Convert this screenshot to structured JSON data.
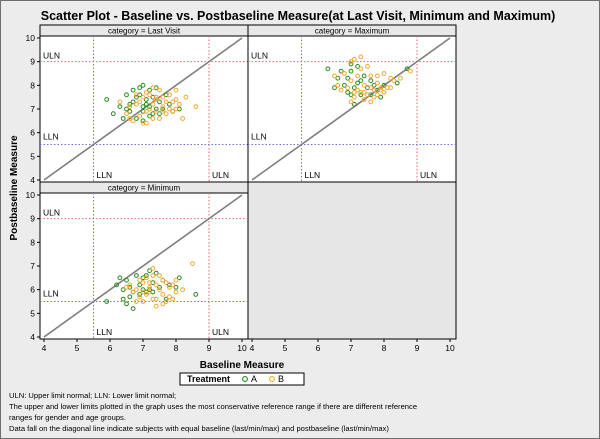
{
  "title": "Scatter Plot - Baseline vs. Postbaseline Measure(at Last Visit, Minimum and Maximum)",
  "xlabel": "Baseline Measure",
  "ylabel": "Postbaseline Measure",
  "legend": {
    "title": "Treatment",
    "entries": [
      {
        "name": "A",
        "color": "#2a8a1e"
      },
      {
        "name": "B",
        "color": "#f0a830"
      }
    ]
  },
  "reference_labels": {
    "upper": "ULN",
    "lower": "LLN"
  },
  "footnotes": [
    "ULN: Upper limit normal; LLN: Lower limit normal;",
    "The upper and lower limits plotted in the graph uses the most conservative reference range if there are different reference",
    "ranges for gender and age groups.",
    " Data fall on the diagonal line indicate subjects with equal baseline (last/min/max) and postbaseline (last/min/max)"
  ],
  "colors": {
    "panel_bg": "#ffffff",
    "empty_panel_bg": "#e6e6e6",
    "strip_bg": "#e8e8e8",
    "ref_upper": "#e0606e",
    "ref_lower": "#7070e0",
    "diagonal": "#7d7d7d"
  },
  "chart_data": {
    "type": "scatter",
    "layout": "2x2 panel grid, bottom-right panel empty",
    "xlim": [
      4,
      10
    ],
    "ylim": [
      4,
      10
    ],
    "x_ticks": [
      "4",
      "5",
      "6",
      "7",
      "8",
      "9",
      "10"
    ],
    "y_ticks": [
      "4",
      "5",
      "6",
      "7",
      "8",
      "9",
      "10"
    ],
    "reference_lines": {
      "LLN": 5.5,
      "ULN": 9
    },
    "diagonal": "y = x",
    "grid": false,
    "legend_position": "bottom-center",
    "panels": [
      {
        "label": "category = Last Visit",
        "series": [
          {
            "name": "A",
            "points": [
              [
                6.5,
                7.0
              ],
              [
                6.7,
                7.3
              ],
              [
                6.9,
                7.6
              ],
              [
                7.0,
                6.9
              ],
              [
                7.1,
                7.2
              ],
              [
                7.2,
                7.8
              ],
              [
                7.3,
                6.8
              ],
              [
                7.4,
                7.0
              ],
              [
                6.6,
                6.9
              ],
              [
                6.8,
                7.5
              ],
              [
                7.0,
                7.1
              ],
              [
                7.5,
                7.3
              ],
              [
                7.6,
                7.0
              ],
              [
                7.2,
                6.7
              ],
              [
                6.9,
                7.9
              ],
              [
                7.1,
                7.4
              ],
              [
                5.9,
                7.4
              ],
              [
                6.3,
                7.1
              ],
              [
                7.7,
                7.6
              ],
              [
                6.8,
                6.6
              ],
              [
                7.3,
                7.5
              ],
              [
                7.0,
                8.0
              ],
              [
                6.7,
                7.8
              ],
              [
                7.8,
                7.2
              ],
              [
                6.4,
                6.6
              ],
              [
                7.4,
                7.9
              ],
              [
                6.1,
                6.8
              ],
              [
                7.9,
                6.9
              ],
              [
                7.2,
                7.1
              ],
              [
                6.6,
                7.2
              ],
              [
                7.0,
                6.5
              ],
              [
                8.1,
                7.0
              ],
              [
                6.5,
                7.6
              ],
              [
                7.5,
                6.8
              ]
            ]
          },
          {
            "name": "B",
            "points": [
              [
                6.6,
                7.1
              ],
              [
                6.9,
                7.3
              ],
              [
                7.2,
                7.0
              ],
              [
                7.4,
                7.4
              ],
              [
                7.6,
                7.1
              ],
              [
                7.8,
                7.6
              ],
              [
                7.9,
                6.9
              ],
              [
                8.0,
                7.4
              ],
              [
                7.3,
                6.6
              ],
              [
                6.8,
                7.6
              ],
              [
                7.1,
                6.9
              ],
              [
                7.5,
                7.8
              ],
              [
                7.7,
                6.8
              ],
              [
                8.1,
                7.2
              ],
              [
                6.5,
                6.8
              ],
              [
                7.0,
                7.5
              ],
              [
                7.3,
                7.2
              ],
              [
                7.8,
                7.0
              ],
              [
                8.2,
                6.6
              ],
              [
                6.7,
                6.5
              ],
              [
                7.1,
                7.7
              ],
              [
                7.6,
                7.5
              ],
              [
                8.0,
                7.8
              ],
              [
                6.9,
                6.7
              ],
              [
                7.4,
                6.9
              ],
              [
                7.9,
                7.3
              ],
              [
                8.6,
                7.1
              ],
              [
                6.3,
                7.3
              ],
              [
                7.2,
                7.6
              ],
              [
                7.5,
                6.6
              ],
              [
                7.7,
                7.3
              ],
              [
                8.3,
                7.5
              ],
              [
                7.0,
                6.4
              ],
              [
                7.4,
                7.5
              ],
              [
                6.8,
                7.2
              ],
              [
                7.6,
                6.9
              ],
              [
                8.0,
                7.0
              ],
              [
                7.3,
                7.9
              ],
              [
                6.6,
                6.6
              ],
              [
                7.1,
                6.4
              ]
            ]
          }
        ]
      },
      {
        "label": "category = Maximum",
        "series": [
          {
            "name": "A",
            "points": [
              [
                6.6,
                8.3
              ],
              [
                6.8,
                8.0
              ],
              [
                7.0,
                8.6
              ],
              [
                7.2,
                8.1
              ],
              [
                6.9,
                7.7
              ],
              [
                7.1,
                7.9
              ],
              [
                7.3,
                7.6
              ],
              [
                7.5,
                7.9
              ],
              [
                7.6,
                8.2
              ],
              [
                7.8,
                7.8
              ],
              [
                7.0,
                8.9
              ],
              [
                6.7,
                8.6
              ],
              [
                7.4,
                8.4
              ],
              [
                6.5,
                7.9
              ],
              [
                7.2,
                8.8
              ],
              [
                8.0,
                8.0
              ],
              [
                8.4,
                8.1
              ],
              [
                8.7,
                8.7
              ],
              [
                6.3,
                8.7
              ],
              [
                7.9,
                7.5
              ],
              [
                7.1,
                7.2
              ],
              [
                7.3,
                8.2
              ],
              [
                7.6,
                7.6
              ],
              [
                6.9,
                8.3
              ],
              [
                7.7,
                8.0
              ],
              [
                7.0,
                7.6
              ]
            ]
          },
          {
            "name": "B",
            "points": [
              [
                6.8,
                8.5
              ],
              [
                7.0,
                8.2
              ],
              [
                7.2,
                8.4
              ],
              [
                7.4,
                8.0
              ],
              [
                7.6,
                7.9
              ],
              [
                7.8,
                8.1
              ],
              [
                8.0,
                7.7
              ],
              [
                8.2,
                8.3
              ],
              [
                7.1,
                9.1
              ],
              [
                7.3,
                8.7
              ],
              [
                6.9,
                7.9
              ],
              [
                7.5,
                7.6
              ],
              [
                7.7,
                7.8
              ],
              [
                7.9,
                7.9
              ],
              [
                8.1,
                7.9
              ],
              [
                8.3,
                8.2
              ],
              [
                7.3,
                7.7
              ],
              [
                7.6,
                8.4
              ],
              [
                6.6,
                8.0
              ],
              [
                7.1,
                7.7
              ],
              [
                8.5,
                8.3
              ],
              [
                7.7,
                7.5
              ],
              [
                7.0,
                9.0
              ],
              [
                7.2,
                7.8
              ],
              [
                7.4,
                7.4
              ],
              [
                7.8,
                8.4
              ],
              [
                8.0,
                8.5
              ],
              [
                6.5,
                8.4
              ],
              [
                7.5,
                8.8
              ],
              [
                7.9,
                7.8
              ],
              [
                7.0,
                7.3
              ],
              [
                7.3,
                9.2
              ],
              [
                7.6,
                7.3
              ],
              [
                7.8,
                7.6
              ],
              [
                8.2,
                7.9
              ],
              [
                6.7,
                7.8
              ],
              [
                7.1,
                7.5
              ],
              [
                7.4,
                7.7
              ],
              [
                8.8,
                8.6
              ]
            ]
          }
        ]
      },
      {
        "label": "category = Minimum",
        "series": [
          {
            "name": "A",
            "points": [
              [
                6.2,
                6.2
              ],
              [
                6.4,
                6.0
              ],
              [
                6.5,
                6.4
              ],
              [
                6.7,
                5.9
              ],
              [
                6.9,
                6.2
              ],
              [
                7.0,
                6.5
              ],
              [
                7.1,
                5.9
              ],
              [
                7.3,
                6.3
              ],
              [
                7.5,
                6.1
              ],
              [
                6.8,
                6.6
              ],
              [
                7.2,
                6.0
              ],
              [
                7.6,
                6.4
              ],
              [
                6.6,
                5.7
              ],
              [
                7.0,
                6.0
              ],
              [
                6.3,
                6.5
              ],
              [
                7.4,
                6.7
              ],
              [
                7.8,
                6.2
              ],
              [
                8.0,
                6.1
              ],
              [
                5.9,
                5.5
              ],
              [
                6.5,
                5.4
              ],
              [
                6.7,
                5.2
              ],
              [
                8.6,
                5.8
              ],
              [
                7.1,
                6.6
              ],
              [
                6.9,
                5.8
              ],
              [
                7.3,
                5.9
              ],
              [
                7.7,
                5.6
              ],
              [
                6.6,
                6.1
              ],
              [
                7.2,
                6.8
              ],
              [
                8.1,
                6.5
              ],
              [
                6.4,
                5.6
              ]
            ]
          },
          {
            "name": "B",
            "points": [
              [
                6.6,
                6.2
              ],
              [
                6.8,
                6.0
              ],
              [
                7.0,
                6.3
              ],
              [
                7.2,
                5.9
              ],
              [
                7.4,
                6.2
              ],
              [
                7.6,
                5.8
              ],
              [
                7.8,
                6.1
              ],
              [
                8.0,
                5.9
              ],
              [
                7.3,
                6.6
              ],
              [
                6.9,
                5.7
              ],
              [
                7.1,
                6.5
              ],
              [
                7.5,
                6.0
              ],
              [
                7.7,
                6.3
              ],
              [
                7.9,
                5.6
              ],
              [
                6.7,
                5.9
              ],
              [
                7.0,
                5.5
              ],
              [
                7.3,
                5.6
              ],
              [
                7.6,
                6.4
              ],
              [
                8.2,
                6.0
              ],
              [
                7.4,
                5.3
              ],
              [
                7.7,
                5.5
              ],
              [
                6.5,
                6.1
              ],
              [
                7.1,
                5.8
              ],
              [
                7.8,
                5.7
              ],
              [
                7.2,
                6.1
              ],
              [
                8.5,
                7.1
              ],
              [
                7.5,
                6.6
              ],
              [
                6.9,
                6.4
              ],
              [
                7.3,
                6.9
              ],
              [
                8.0,
                6.4
              ],
              [
                7.6,
                5.4
              ],
              [
                6.8,
                5.5
              ],
              [
                7.4,
                5.6
              ],
              [
                7.9,
                6.2
              ],
              [
                7.0,
                5.9
              ],
              [
                7.2,
                6.3
              ]
            ]
          }
        ]
      }
    ]
  }
}
